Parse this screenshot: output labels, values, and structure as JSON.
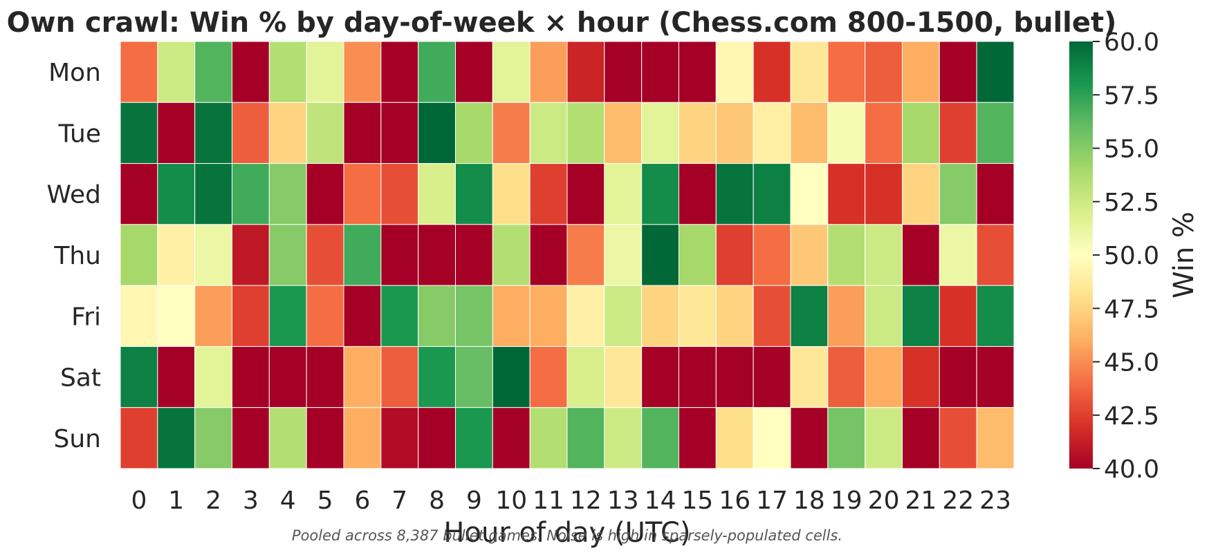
{
  "chart_data": {
    "type": "heatmap",
    "title": "Own crawl: Win % by day-of-week × hour (Chess.com 800-1500, bullet)",
    "xlabel": "Hour of day (UTC)",
    "ylabel": "",
    "x_categories": [
      "0",
      "1",
      "2",
      "3",
      "4",
      "5",
      "6",
      "7",
      "8",
      "9",
      "10",
      "11",
      "12",
      "13",
      "14",
      "15",
      "16",
      "17",
      "18",
      "19",
      "20",
      "21",
      "22",
      "23"
    ],
    "y_categories": [
      "Mon",
      "Tue",
      "Wed",
      "Thu",
      "Fri",
      "Sat",
      "Sun"
    ],
    "values": [
      [
        44.0,
        52.5,
        56.5,
        40.0,
        53.5,
        51.5,
        45.0,
        40.0,
        57.0,
        40.0,
        51.5,
        45.5,
        41.5,
        40.0,
        40.0,
        40.0,
        49.5,
        42.0,
        48.5,
        44.0,
        43.5,
        46.0,
        40.0,
        60.0
      ],
      [
        59.5,
        40.0,
        59.5,
        43.5,
        47.5,
        53.0,
        40.0,
        40.0,
        60.0,
        54.0,
        44.5,
        52.5,
        53.5,
        46.5,
        51.5,
        47.5,
        47.0,
        49.0,
        46.5,
        50.5,
        44.0,
        54.0,
        42.5,
        56.5
      ],
      [
        40.0,
        58.5,
        59.5,
        57.0,
        55.0,
        40.0,
        44.0,
        43.0,
        52.0,
        58.5,
        48.0,
        42.5,
        40.0,
        51.5,
        58.5,
        40.0,
        59.5,
        59.0,
        50.0,
        42.0,
        42.0,
        47.5,
        55.0,
        40.0
      ],
      [
        54.0,
        49.0,
        51.0,
        41.0,
        55.0,
        43.0,
        57.0,
        40.0,
        40.0,
        40.0,
        53.5,
        40.0,
        44.5,
        51.0,
        60.0,
        54.0,
        42.5,
        44.0,
        47.0,
        53.5,
        52.5,
        40.0,
        51.0,
        43.0
      ],
      [
        49.5,
        50.0,
        45.5,
        42.5,
        58.0,
        44.0,
        40.0,
        58.0,
        55.0,
        55.5,
        46.0,
        46.0,
        49.0,
        52.5,
        47.5,
        48.5,
        47.5,
        43.0,
        59.0,
        45.5,
        52.5,
        59.0,
        42.0,
        58.5
      ],
      [
        59.0,
        40.0,
        51.5,
        40.0,
        40.0,
        40.0,
        46.0,
        43.5,
        58.0,
        56.0,
        60.0,
        44.0,
        52.0,
        48.5,
        40.0,
        40.0,
        40.0,
        40.0,
        48.5,
        43.5,
        46.0,
        42.0,
        40.0,
        40.0
      ],
      [
        42.5,
        59.5,
        55.0,
        40.0,
        53.5,
        40.0,
        46.0,
        40.5,
        40.0,
        58.0,
        40.0,
        53.5,
        56.5,
        52.5,
        56.5,
        40.0,
        48.0,
        50.0,
        40.0,
        55.5,
        52.5,
        40.0,
        43.0,
        46.5
      ]
    ],
    "colorbar": {
      "label": "Win %",
      "min": 40.0,
      "max": 60.0,
      "ticks": [
        "40.0",
        "42.5",
        "45.0",
        "47.5",
        "50.0",
        "52.5",
        "55.0",
        "57.5",
        "60.0"
      ],
      "colormap": "RdYlGn",
      "colors": [
        "#a50026",
        "#d73027",
        "#f46d43",
        "#fdae61",
        "#fee08b",
        "#ffffbf",
        "#d9ef8b",
        "#a6d96a",
        "#66bd63",
        "#1a9850",
        "#006837"
      ]
    },
    "grid": false,
    "cell_border_color": "#ffffff"
  },
  "footnote": "Pooled across 8,387 bullet games. Noise is high in sparsely-populated cells."
}
